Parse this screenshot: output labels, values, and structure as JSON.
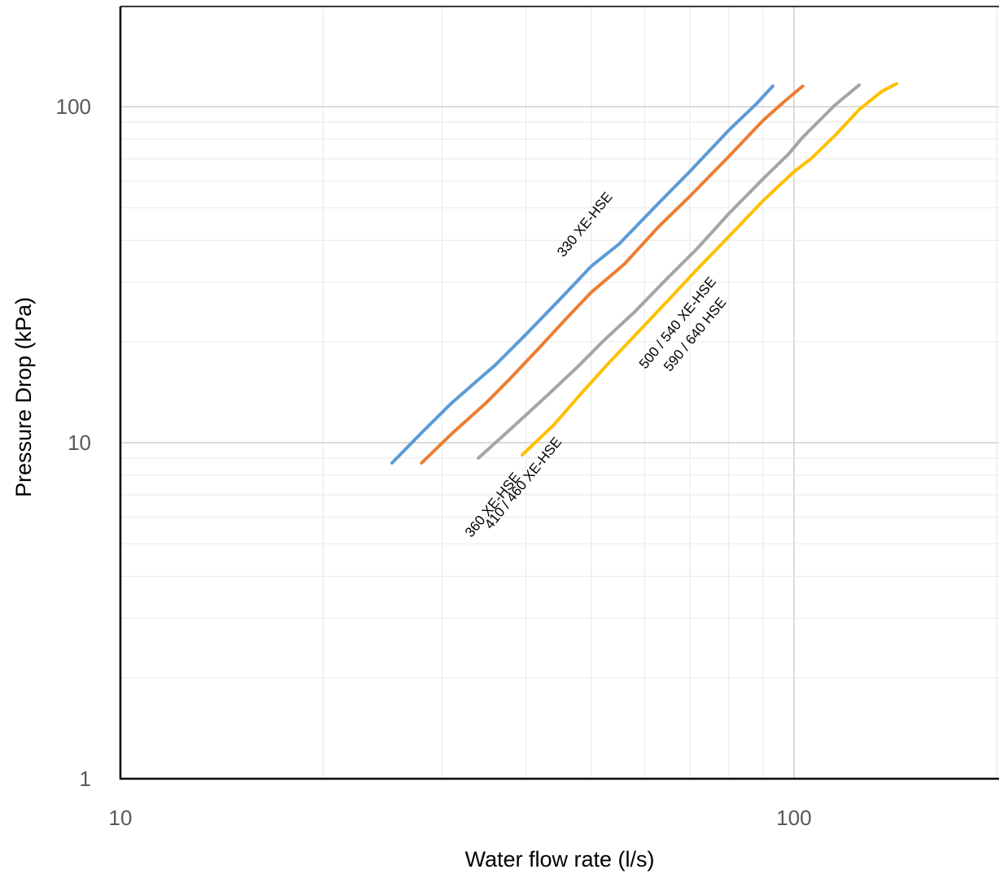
{
  "chart_data": {
    "type": "line",
    "xlabel": "Water flow rate (l/s)",
    "ylabel": "Pressure Drop (kPa)",
    "x_scale": "log",
    "y_scale": "log",
    "xlim": [
      10,
      200
    ],
    "ylim": [
      1,
      200
    ],
    "x_ticks": [
      "10",
      "100"
    ],
    "y_ticks": [
      "1",
      "10",
      "100"
    ],
    "grid": true,
    "series": [
      {
        "color": "#5B9BD5",
        "x": [
          25.3,
          28,
          31,
          34.5,
          36,
          40,
          45,
          50,
          55,
          62,
          70,
          80,
          88,
          93
        ],
        "y": [
          8.7,
          10.7,
          13.1,
          15.8,
          17,
          21,
          26.8,
          33.5,
          39,
          50,
          64,
          85,
          102,
          115
        ]
      },
      {
        "color": "#ED7D31",
        "x": [
          28,
          31,
          35,
          38,
          42,
          46,
          50,
          56,
          63,
          70,
          80,
          90,
          97,
          103
        ],
        "y": [
          8.7,
          10.6,
          13.2,
          15.6,
          19.3,
          23.5,
          28,
          34,
          44,
          54,
          71,
          91,
          104,
          115
        ]
      },
      {
        "color": "#A5A5A5",
        "x": [
          34,
          38,
          43,
          48,
          52,
          58,
          65,
          72,
          80,
          90,
          98,
          103,
          115,
          125
        ],
        "y": [
          9,
          11,
          13.8,
          17,
          20,
          24.5,
          31,
          38,
          48,
          61,
          72,
          81,
          101,
          116
        ]
      },
      {
        "color": "#FFC000",
        "x": [
          39.5,
          44,
          48,
          53,
          58,
          65,
          72,
          80,
          90,
          100,
          106,
          115,
          125,
          135,
          142
        ],
        "y": [
          9.2,
          11.3,
          13.8,
          17.2,
          20.8,
          26.5,
          33,
          41,
          52.5,
          64,
          70,
          82,
          98,
          111,
          117
        ]
      }
    ],
    "annotations": [
      {
        "text": "330 XE-HSE",
        "x": 45.5,
        "y": 35.5,
        "angle": -51
      },
      {
        "text": "360 XE-HSE",
        "x": 33.2,
        "y": 5.2,
        "angle": -51
      },
      {
        "text": "410 / 460 XE-HSE",
        "x": 35.5,
        "y": 5.5,
        "angle": -51
      },
      {
        "text": "500 / 540 XE-HSE",
        "x": 60.2,
        "y": 16.5,
        "angle": -51
      },
      {
        "text": "590 / 640 HSE",
        "x": 65.5,
        "y": 16.2,
        "angle": -51
      }
    ]
  }
}
